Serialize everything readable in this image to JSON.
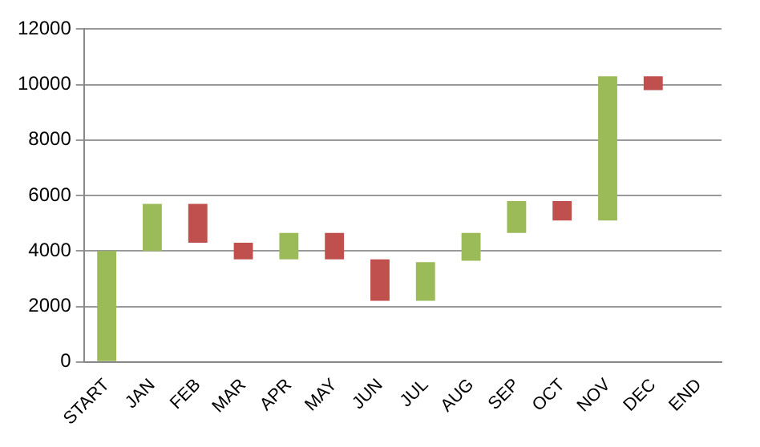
{
  "chart_data": {
    "type": "bar",
    "categories": [
      "START",
      "JAN",
      "FEB",
      "MAR",
      "APR",
      "MAY",
      "JUN",
      "JUL",
      "AUG",
      "SEP",
      "OCT",
      "NOV",
      "DEC",
      "END"
    ],
    "base": [
      0,
      4000,
      5700,
      4300,
      3700,
      4650,
      3700,
      2200,
      3650,
      4650,
      5800,
      5100,
      10300,
      null
    ],
    "values": [
      4000,
      1700,
      -1400,
      -600,
      950,
      -950,
      -1500,
      1400,
      1000,
      1150,
      -700,
      5200,
      -500,
      null
    ],
    "colors": [
      "#9bbb59",
      "#9bbb59",
      "#c0504d",
      "#c0504d",
      "#9bbb59",
      "#c0504d",
      "#c0504d",
      "#9bbb59",
      "#9bbb59",
      "#9bbb59",
      "#c0504d",
      "#9bbb59",
      "#c0504d",
      null
    ],
    "ylim": [
      0,
      12000
    ],
    "yticks": [
      0,
      2000,
      4000,
      6000,
      8000,
      10000,
      12000
    ],
    "grid": "y",
    "legend": false
  }
}
